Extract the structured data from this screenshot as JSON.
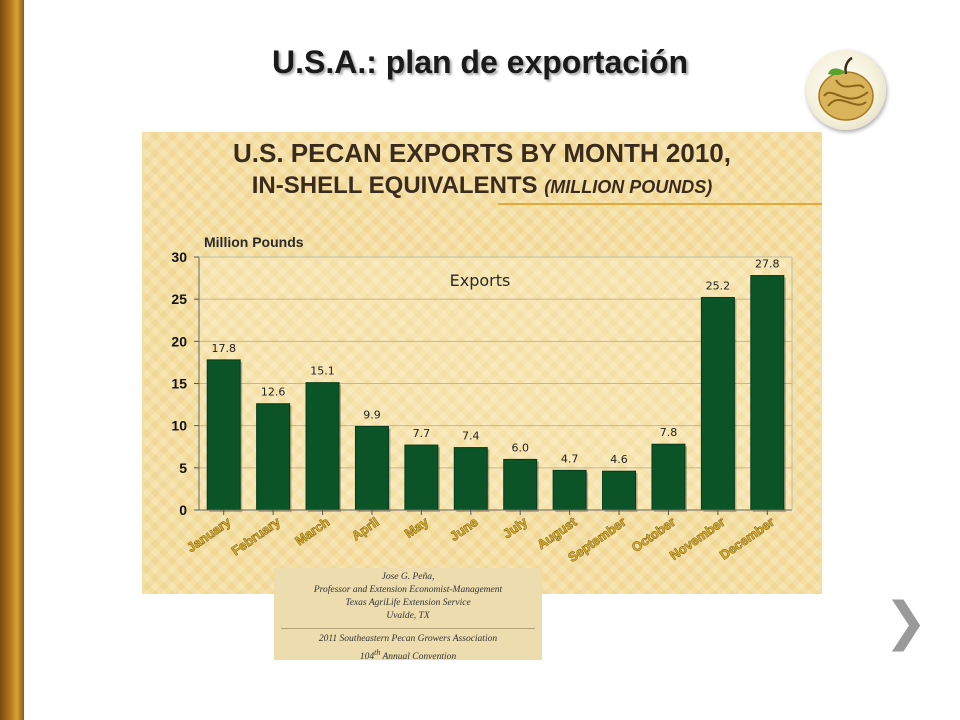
{
  "slide": {
    "title": "U.S.A.: plan de exportación"
  },
  "chart_data": {
    "type": "bar",
    "title": "U.S. PECAN EXPORTS BY MONTH 2010,",
    "title_line2": "IN-SHELL EQUIVALENTS",
    "title_line2_unit": "(MILLION POUNDS)",
    "ylabel": "Million Pounds",
    "legend": "Exports",
    "categories": [
      "January",
      "February",
      "March",
      "April",
      "May",
      "June",
      "July",
      "August",
      "September",
      "October",
      "November",
      "December"
    ],
    "values": [
      17.8,
      12.6,
      15.1,
      9.9,
      7.7,
      7.4,
      6.0,
      4.7,
      4.6,
      7.8,
      25.2,
      27.8
    ],
    "value_labels": [
      "17.8",
      "12.6",
      "15.1",
      "9.9",
      "7.7",
      "7.4",
      "6.0",
      "4.7",
      "4.6",
      "7.8",
      "25.2",
      "27.8"
    ],
    "ylim": [
      0,
      30
    ],
    "yticks": [
      0,
      5,
      10,
      15,
      20,
      25,
      30
    ],
    "grid": true,
    "bar_color": "#0b5428"
  },
  "caption": {
    "lines": [
      "Jose G. Peña,",
      "Professor and Extension Economist-Management",
      "Texas AgriLife Extension Service",
      "Uvalde, TX"
    ],
    "event_line1": "2011 Southeastern Pecan Growers Association",
    "event_line2_num": "104",
    "event_line2_sup": "th",
    "event_line2_rest": " Annual  Convention"
  },
  "nav": {
    "next_glyph": "❯"
  },
  "colors": {
    "panel_bg": "#f5dfa0",
    "accent_rule": "#e3a93a",
    "left_bar": "#b8791e"
  }
}
